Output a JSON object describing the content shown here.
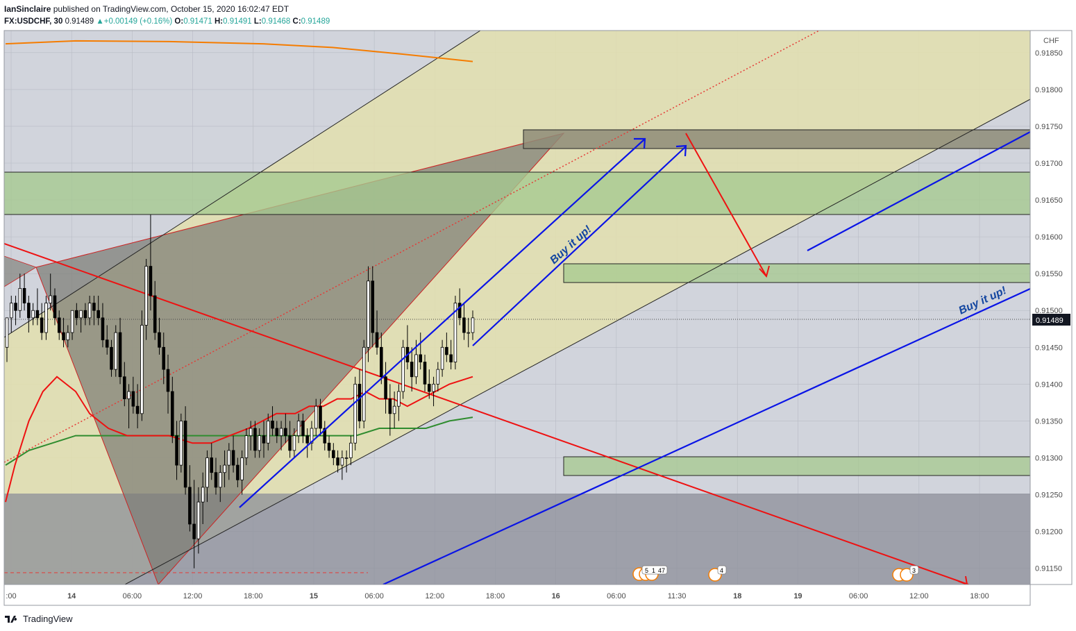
{
  "header": {
    "author": "IanSinclaire",
    "published_text": "published on TradingView.com, October 15, 2020 16:02:47 EDT",
    "symbol": "FX:USDCHF, 30",
    "last": "0.91489",
    "change": "+0.00149 (+0.16%)",
    "o_label": "O:",
    "o": "0.91471",
    "h_label": "H:",
    "h": "0.91491",
    "l_label": "L:",
    "l": "0.91468",
    "c_label": "C:",
    "c": "0.91489"
  },
  "footer": {
    "brand": "TradingView"
  },
  "colors": {
    "up": "#ffffff",
    "down": "#000000",
    "channel_fill": "#e3dfae",
    "bg": "#d1d4dc",
    "red": "#ee1111",
    "blue": "#0a14e6",
    "green_ma": "#2f8c2f",
    "orange": "#f57c00",
    "zone_green": "#a5c98f",
    "zone_dark": "#8c8c8c",
    "label_blue": "#1346a0"
  },
  "chart_data": {
    "type": "candlestick",
    "currency": "CHF",
    "ylim": [
      0.91128,
      0.9188
    ],
    "y_ticks": [
      "0.91850",
      "0.91800",
      "0.91750",
      "0.91700",
      "0.91650",
      "0.91600",
      "0.91550",
      "0.91500",
      "0.91450",
      "0.91400",
      "0.91350",
      "0.91300",
      "0.91250",
      "0.91200",
      "0.91150"
    ],
    "x_ticks": [
      ":00",
      "14",
      "06:00",
      "12:00",
      "18:00",
      "15",
      "06:00",
      "12:00",
      "18:00",
      "16",
      "06:00",
      "11:30",
      "18",
      "19",
      "06:00",
      "12:00",
      "18:00"
    ],
    "bold_x_ticks": [
      "14",
      "15",
      "16",
      "18",
      "19"
    ],
    "current_price": "0.91489",
    "annotations": [
      "Buy it up!",
      "Buy it up!"
    ],
    "event_badges": [
      "5",
      "1",
      "47",
      "4",
      "3"
    ],
    "candles": [
      [
        0.9145,
        0.9149,
        0.9143,
        0.9149
      ],
      [
        0.9149,
        0.9152,
        0.9147,
        0.9151
      ],
      [
        0.9151,
        0.9152,
        0.9148,
        0.915
      ],
      [
        0.915,
        0.9155,
        0.9149,
        0.9153
      ],
      [
        0.9153,
        0.9155,
        0.915,
        0.9151
      ],
      [
        0.9151,
        0.9152,
        0.9147,
        0.9149
      ],
      [
        0.9149,
        0.9151,
        0.9148,
        0.915
      ],
      [
        0.915,
        0.9153,
        0.9148,
        0.9149
      ],
      [
        0.9149,
        0.9151,
        0.9146,
        0.9147
      ],
      [
        0.9147,
        0.9152,
        0.9146,
        0.9151
      ],
      [
        0.9151,
        0.9155,
        0.915,
        0.9152
      ],
      [
        0.9152,
        0.9153,
        0.9148,
        0.9149
      ],
      [
        0.9149,
        0.915,
        0.9146,
        0.9147
      ],
      [
        0.9147,
        0.9149,
        0.9145,
        0.9146
      ],
      [
        0.9146,
        0.9148,
        0.9145,
        0.9147
      ],
      [
        0.9147,
        0.915,
        0.9146,
        0.915
      ],
      [
        0.915,
        0.9151,
        0.9148,
        0.9149
      ],
      [
        0.9149,
        0.915,
        0.9147,
        0.915
      ],
      [
        0.915,
        0.9151,
        0.9148,
        0.9149
      ],
      [
        0.9149,
        0.9152,
        0.9148,
        0.9151
      ],
      [
        0.9151,
        0.9152,
        0.9148,
        0.915
      ],
      [
        0.915,
        0.9152,
        0.9148,
        0.9149
      ],
      [
        0.9149,
        0.9151,
        0.9145,
        0.9146
      ],
      [
        0.9146,
        0.9148,
        0.9144,
        0.9145
      ],
      [
        0.9145,
        0.9146,
        0.9141,
        0.9142
      ],
      [
        0.9142,
        0.9148,
        0.9141,
        0.9147
      ],
      [
        0.9147,
        0.9149,
        0.914,
        0.9141
      ],
      [
        0.9141,
        0.9143,
        0.9137,
        0.9138
      ],
      [
        0.9138,
        0.914,
        0.9134,
        0.9139
      ],
      [
        0.9139,
        0.9141,
        0.9136,
        0.9137
      ],
      [
        0.9137,
        0.914,
        0.9134,
        0.9136
      ],
      [
        0.9136,
        0.915,
        0.9135,
        0.9148
      ],
      [
        0.9148,
        0.9157,
        0.9146,
        0.9156
      ],
      [
        0.9156,
        0.9163,
        0.915,
        0.9152
      ],
      [
        0.9152,
        0.9154,
        0.9146,
        0.9147
      ],
      [
        0.9147,
        0.9149,
        0.9144,
        0.9145
      ],
      [
        0.9145,
        0.9147,
        0.914,
        0.9142
      ],
      [
        0.9142,
        0.9144,
        0.9136,
        0.9139
      ],
      [
        0.9139,
        0.9141,
        0.9132,
        0.9133
      ],
      [
        0.9133,
        0.9135,
        0.9127,
        0.9129
      ],
      [
        0.9129,
        0.9136,
        0.9128,
        0.9135
      ],
      [
        0.9135,
        0.9137,
        0.9125,
        0.9126
      ],
      [
        0.9126,
        0.9129,
        0.912,
        0.9121
      ],
      [
        0.9121,
        0.9127,
        0.9115,
        0.9119
      ],
      [
        0.9119,
        0.9126,
        0.9117,
        0.9124
      ],
      [
        0.9124,
        0.9128,
        0.9121,
        0.9126
      ],
      [
        0.9126,
        0.9131,
        0.9124,
        0.913
      ],
      [
        0.913,
        0.9132,
        0.9127,
        0.9128
      ],
      [
        0.9128,
        0.913,
        0.9125,
        0.9126
      ],
      [
        0.9126,
        0.9129,
        0.9124,
        0.9128
      ],
      [
        0.9128,
        0.9131,
        0.9126,
        0.9129
      ],
      [
        0.9129,
        0.9132,
        0.9127,
        0.9131
      ],
      [
        0.9131,
        0.9133,
        0.9128,
        0.9129
      ],
      [
        0.9129,
        0.913,
        0.9126,
        0.9127
      ],
      [
        0.9127,
        0.9131,
        0.9125,
        0.913
      ],
      [
        0.913,
        0.9134,
        0.9129,
        0.9133
      ],
      [
        0.9133,
        0.9135,
        0.9131,
        0.9134
      ],
      [
        0.9134,
        0.9135,
        0.913,
        0.9131
      ],
      [
        0.9131,
        0.9134,
        0.913,
        0.9133
      ],
      [
        0.9133,
        0.9135,
        0.913,
        0.9132
      ],
      [
        0.9132,
        0.9136,
        0.9131,
        0.9135
      ],
      [
        0.9135,
        0.9137,
        0.9133,
        0.9134
      ],
      [
        0.9134,
        0.9135,
        0.9132,
        0.9133
      ],
      [
        0.9133,
        0.9135,
        0.9131,
        0.9134
      ],
      [
        0.9134,
        0.9136,
        0.9132,
        0.9133
      ],
      [
        0.9133,
        0.9135,
        0.913,
        0.9131
      ],
      [
        0.9131,
        0.9134,
        0.913,
        0.9133
      ],
      [
        0.9133,
        0.9136,
        0.9132,
        0.9135
      ],
      [
        0.9135,
        0.9136,
        0.9132,
        0.9133
      ],
      [
        0.9133,
        0.9134,
        0.913,
        0.9132
      ],
      [
        0.9132,
        0.9135,
        0.9131,
        0.9134
      ],
      [
        0.9134,
        0.9138,
        0.9133,
        0.9137
      ],
      [
        0.9137,
        0.9138,
        0.9133,
        0.9134
      ],
      [
        0.9134,
        0.9135,
        0.9131,
        0.9132
      ],
      [
        0.9132,
        0.9133,
        0.913,
        0.9131
      ],
      [
        0.9131,
        0.9132,
        0.9129,
        0.913
      ],
      [
        0.913,
        0.9131,
        0.9128,
        0.9129
      ],
      [
        0.9129,
        0.9131,
        0.9127,
        0.913
      ],
      [
        0.913,
        0.9131,
        0.9128,
        0.913
      ],
      [
        0.913,
        0.9133,
        0.9129,
        0.9132
      ],
      [
        0.9132,
        0.9141,
        0.9131,
        0.914
      ],
      [
        0.914,
        0.9142,
        0.9134,
        0.9135
      ],
      [
        0.9135,
        0.9146,
        0.9134,
        0.9145
      ],
      [
        0.9145,
        0.9156,
        0.9143,
        0.9154
      ],
      [
        0.9154,
        0.9156,
        0.9145,
        0.9147
      ],
      [
        0.9147,
        0.915,
        0.9144,
        0.9145
      ],
      [
        0.9145,
        0.9147,
        0.914,
        0.9141
      ],
      [
        0.9141,
        0.9143,
        0.9136,
        0.9138
      ],
      [
        0.9138,
        0.914,
        0.9133,
        0.9136
      ],
      [
        0.9136,
        0.9139,
        0.9134,
        0.9137
      ],
      [
        0.9137,
        0.914,
        0.9135,
        0.9139
      ],
      [
        0.9139,
        0.9146,
        0.9138,
        0.9145
      ],
      [
        0.9145,
        0.9148,
        0.9142,
        0.9143
      ],
      [
        0.9143,
        0.9145,
        0.9139,
        0.9141
      ],
      [
        0.9141,
        0.9146,
        0.914,
        0.9144
      ],
      [
        0.9144,
        0.9147,
        0.9142,
        0.9143
      ],
      [
        0.9143,
        0.9144,
        0.9139,
        0.914
      ],
      [
        0.914,
        0.9142,
        0.9138,
        0.9139
      ],
      [
        0.9139,
        0.9141,
        0.9137,
        0.914
      ],
      [
        0.914,
        0.9143,
        0.9139,
        0.9142
      ],
      [
        0.9142,
        0.9146,
        0.9141,
        0.9145
      ],
      [
        0.9145,
        0.9147,
        0.9143,
        0.9144
      ],
      [
        0.9144,
        0.9146,
        0.9142,
        0.9143
      ],
      [
        0.9143,
        0.9152,
        0.9142,
        0.9151
      ],
      [
        0.9151,
        0.9153,
        0.9148,
        0.9149
      ],
      [
        0.9149,
        0.9151,
        0.9146,
        0.9147
      ],
      [
        0.9147,
        0.9149,
        0.9145,
        0.9147
      ],
      [
        0.9147,
        0.915,
        0.9146,
        0.9149
      ]
    ],
    "sma_red": [
      [
        0,
        0.9124
      ],
      [
        0.02,
        0.9129
      ],
      [
        0.05,
        0.9135
      ],
      [
        0.08,
        0.9139
      ],
      [
        0.11,
        0.9141
      ],
      [
        0.13,
        0.914
      ],
      [
        0.15,
        0.9139
      ],
      [
        0.18,
        0.9136
      ],
      [
        0.22,
        0.9134
      ],
      [
        0.26,
        0.9133
      ],
      [
        0.3,
        0.9133
      ],
      [
        0.35,
        0.9133
      ],
      [
        0.4,
        0.9132
      ],
      [
        0.44,
        0.9132
      ],
      [
        0.48,
        0.9133
      ],
      [
        0.52,
        0.9134
      ],
      [
        0.55,
        0.9135
      ],
      [
        0.58,
        0.9136
      ],
      [
        0.62,
        0.9136
      ],
      [
        0.65,
        0.9137
      ],
      [
        0.68,
        0.9137
      ],
      [
        0.71,
        0.9138
      ],
      [
        0.74,
        0.9138
      ],
      [
        0.77,
        0.9139
      ],
      [
        0.8,
        0.9138
      ],
      [
        0.83,
        0.9138
      ],
      [
        0.86,
        0.9137
      ],
      [
        0.89,
        0.9138
      ],
      [
        0.92,
        0.9139
      ],
      [
        0.95,
        0.914
      ],
      [
        1.0,
        0.9141
      ]
    ],
    "sma_green": [
      [
        0,
        0.9129
      ],
      [
        0.05,
        0.9131
      ],
      [
        0.1,
        0.9132
      ],
      [
        0.15,
        0.9133
      ],
      [
        0.2,
        0.9133
      ],
      [
        0.25,
        0.9133
      ],
      [
        0.3,
        0.9133
      ],
      [
        0.35,
        0.9133
      ],
      [
        0.4,
        0.9133
      ],
      [
        0.45,
        0.9133
      ],
      [
        0.5,
        0.9133
      ],
      [
        0.55,
        0.9133
      ],
      [
        0.6,
        0.9133
      ],
      [
        0.65,
        0.9133
      ],
      [
        0.7,
        0.9133
      ],
      [
        0.75,
        0.9133
      ],
      [
        0.8,
        0.9134
      ],
      [
        0.85,
        0.9134
      ],
      [
        0.9,
        0.9134
      ],
      [
        0.95,
        0.9135
      ],
      [
        1.0,
        0.91355
      ]
    ],
    "sma_orange": [
      [
        0,
        0.91862
      ],
      [
        0.15,
        0.91866
      ],
      [
        0.35,
        0.91865
      ],
      [
        0.55,
        0.91862
      ],
      [
        0.7,
        0.91857
      ],
      [
        0.85,
        0.91848
      ],
      [
        1.0,
        0.91838
      ]
    ]
  }
}
